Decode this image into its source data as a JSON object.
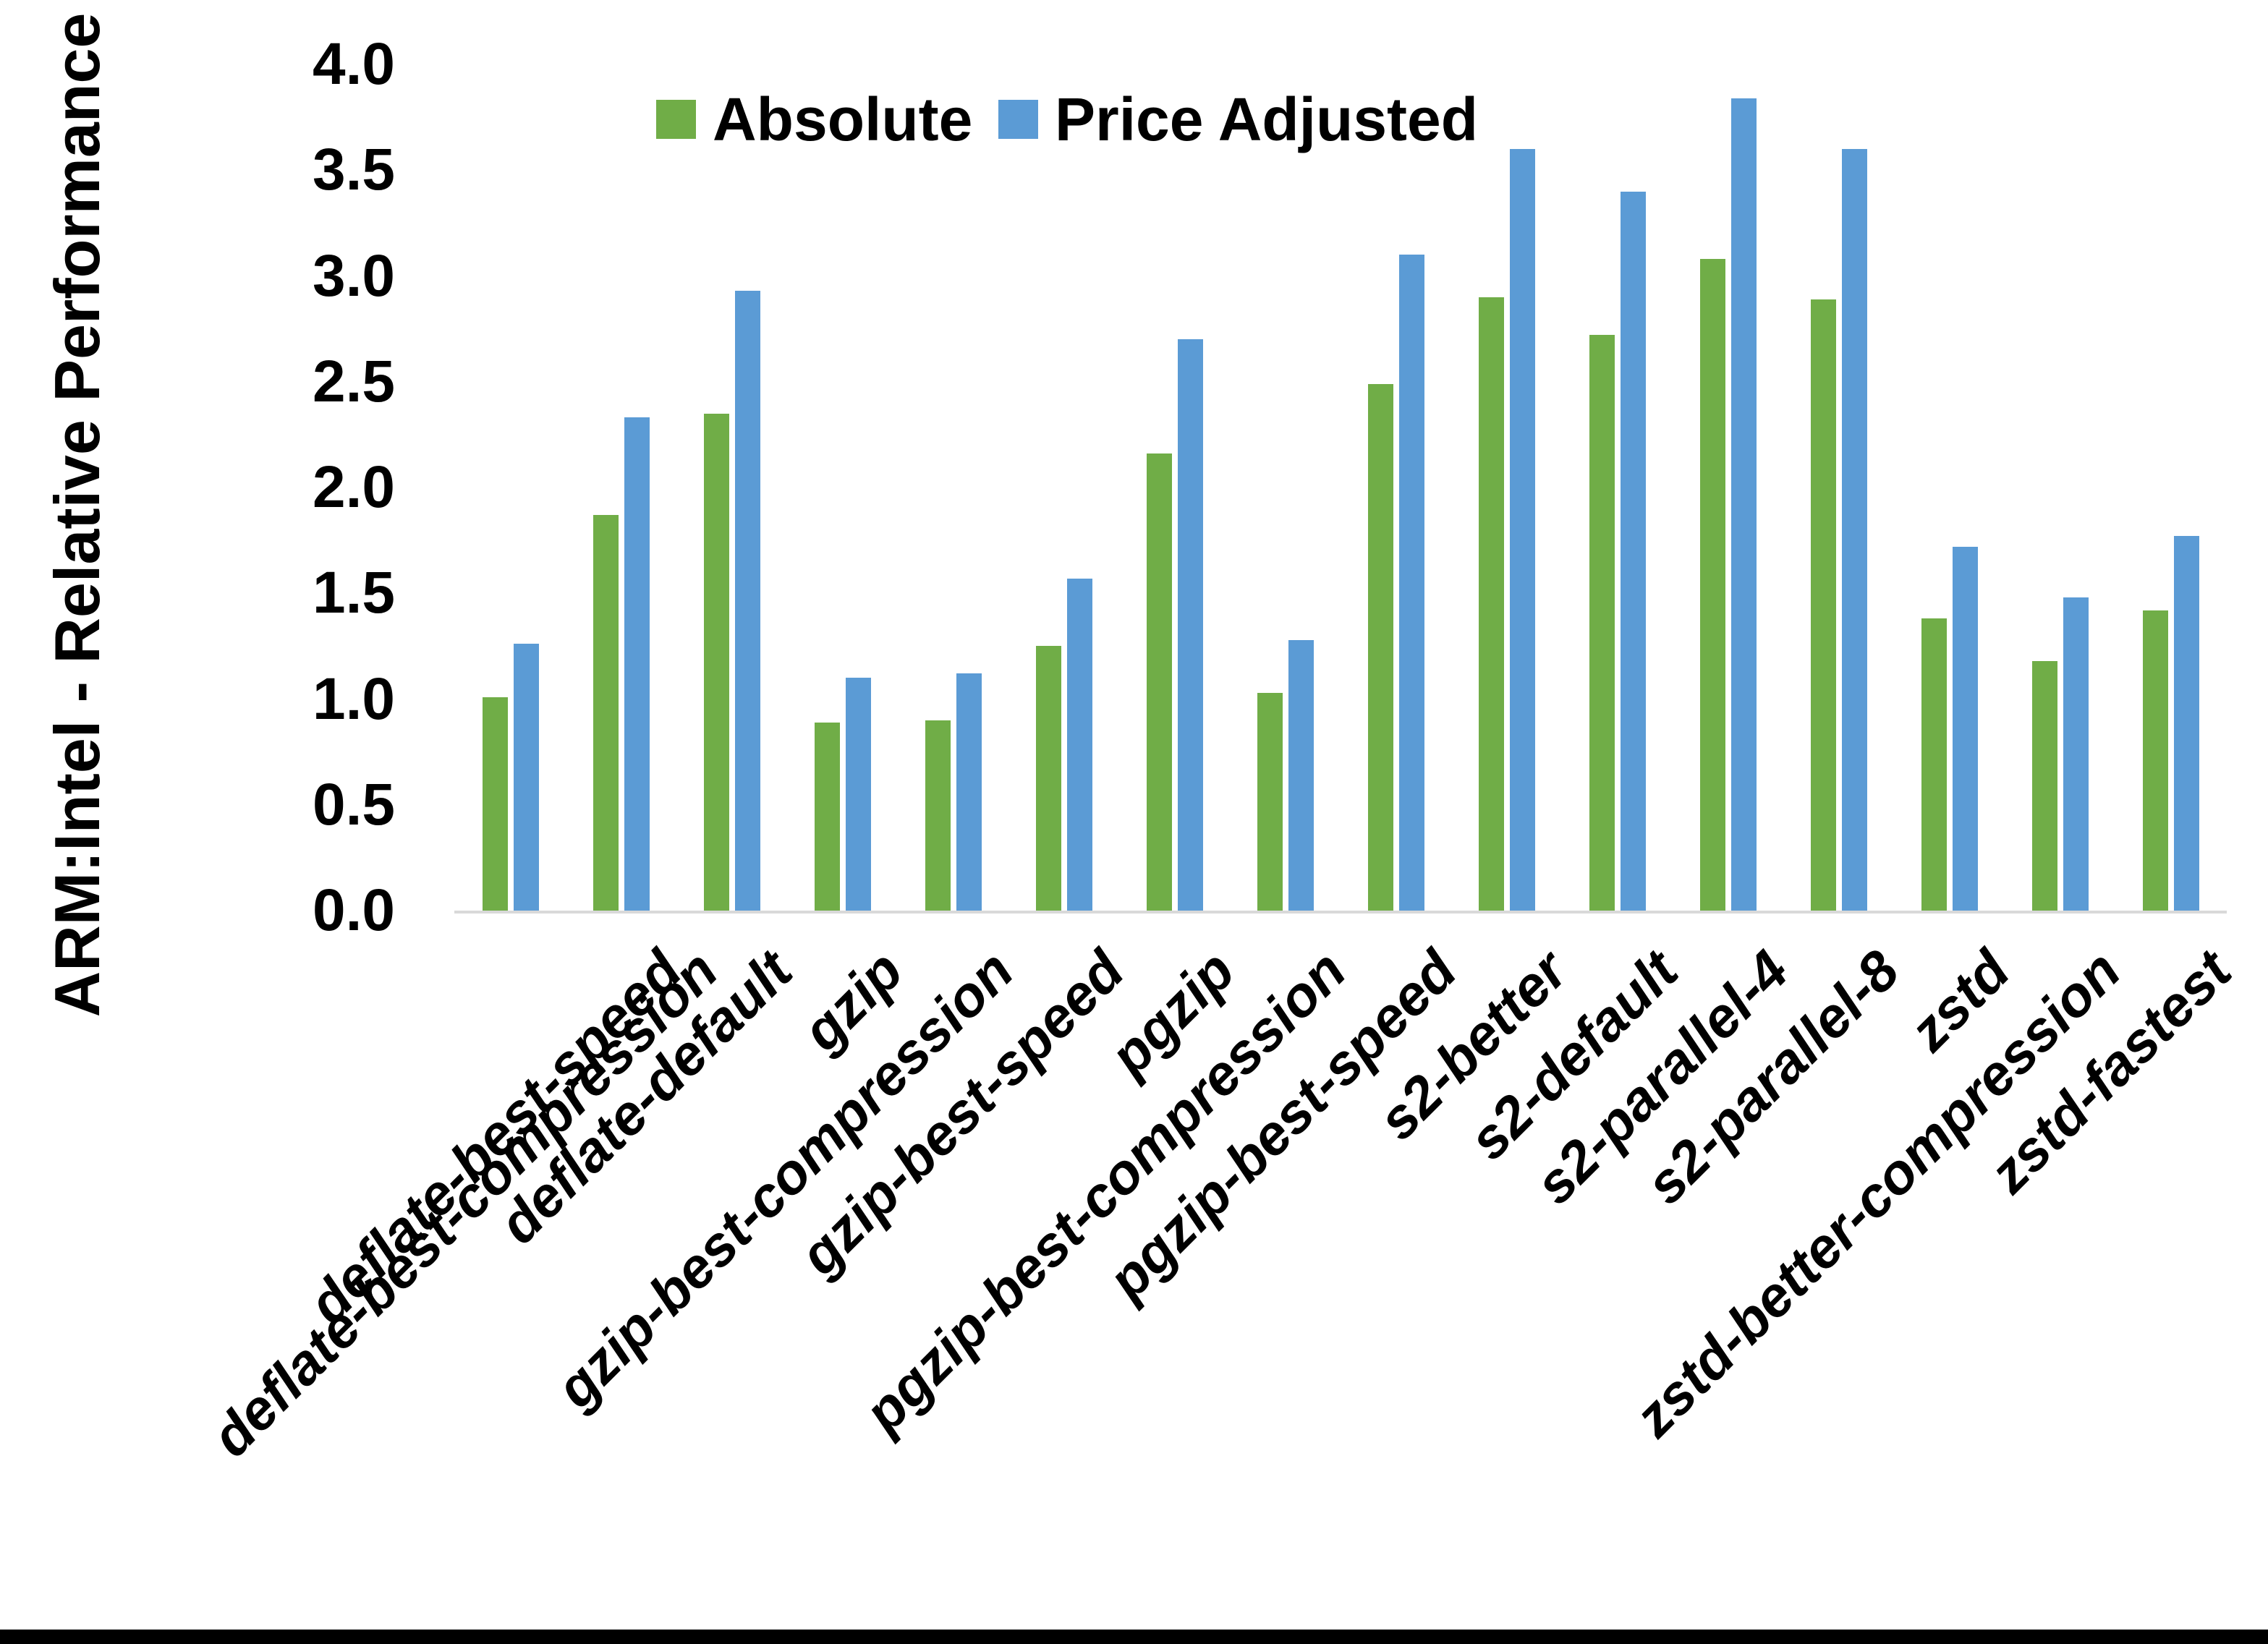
{
  "chart_data": {
    "type": "bar",
    "title": "",
    "xlabel": "",
    "ylabel": "ARM:Intel - Relative Performance",
    "ylim": [
      0.0,
      4.0
    ],
    "ytick_step": 0.5,
    "ytick_labels": [
      "0.0",
      "0.5",
      "1.0",
      "1.5",
      "2.0",
      "2.5",
      "3.0",
      "3.5",
      "4.0"
    ],
    "grid": false,
    "legend_position": "top-center",
    "categories": [
      "deflate-best-compression",
      "deflate-best-speed",
      "deflate-default",
      "gzip",
      "gzip-best-compression",
      "gzip-best-speed",
      "pgzip",
      "pgzip-best-compression",
      "pgzip-best-speed",
      "s2-better",
      "s2-default",
      "s2-parallel-4",
      "s2-parallel-8",
      "zstd",
      "zstd-better-compression",
      "zstd-fastest"
    ],
    "series": [
      {
        "name": "Absolute",
        "color": "#70ad47",
        "values": [
          1.01,
          1.87,
          2.35,
          0.89,
          0.9,
          1.25,
          2.16,
          1.03,
          2.49,
          2.9,
          2.72,
          3.08,
          2.89,
          1.38,
          1.18,
          1.42
        ]
      },
      {
        "name": "Price Adjusted",
        "color": "#5b9bd5",
        "values": [
          1.26,
          2.33,
          2.93,
          1.1,
          1.12,
          1.57,
          2.7,
          1.28,
          3.1,
          3.6,
          3.4,
          3.84,
          3.6,
          1.72,
          1.48,
          1.77
        ]
      }
    ],
    "axis_line_color": "#d9d9d9",
    "text_color": "#000000",
    "background_color": "#ffffff",
    "bottom_border_color": "#000000"
  }
}
